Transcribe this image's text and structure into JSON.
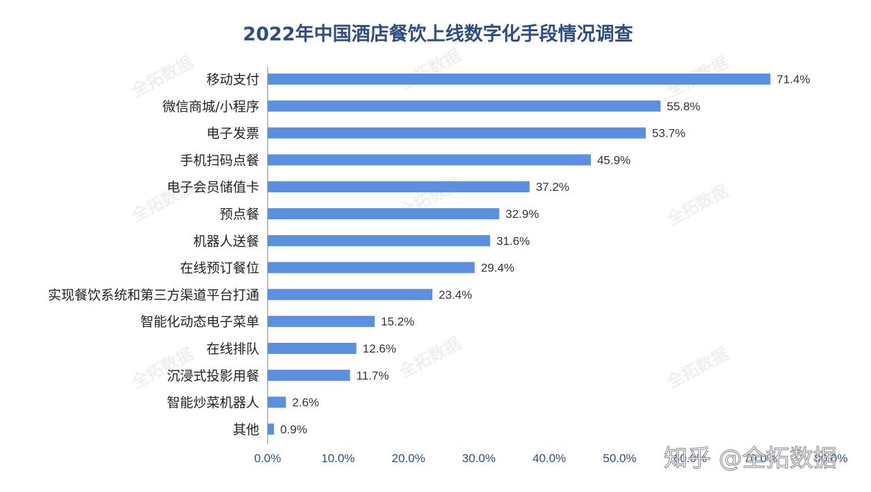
{
  "chart_data": {
    "type": "bar",
    "orientation": "horizontal",
    "title": "2022年中国酒店餐饮上线数字化手段情况调查",
    "categories": [
      "移动支付",
      "微信商城/小程序",
      "电子发票",
      "手机扫码点餐",
      "电子会员储值卡",
      "预点餐",
      "机器人送餐",
      "在线预订餐位",
      "实现餐饮系统和第三方渠道平台打通",
      "智能化动态电子菜单",
      "在线排队",
      "沉浸式投影用餐",
      "智能炒菜机器人",
      "其他"
    ],
    "values": [
      71.4,
      55.8,
      53.7,
      45.9,
      37.2,
      32.9,
      31.6,
      29.4,
      23.4,
      15.2,
      12.6,
      11.7,
      2.6,
      0.9
    ],
    "value_labels": [
      "71.4%",
      "55.8%",
      "53.7%",
      "45.9%",
      "37.2%",
      "32.9%",
      "31.6%",
      "29.4%",
      "23.4%",
      "15.2%",
      "12.6%",
      "11.7%",
      "2.6%",
      "0.9%"
    ],
    "xlim": [
      0,
      80
    ],
    "x_ticks": [
      "0.0%",
      "10.0%",
      "20.0%",
      "30.0%",
      "40.0%",
      "50.0%",
      "60.0%",
      "70.0%",
      "80.0%"
    ],
    "grid": false,
    "legend": "none",
    "bar_color": "#5b8fdf"
  },
  "watermark": "全拓数据",
  "footer_watermark": "知乎 @全拓数据"
}
